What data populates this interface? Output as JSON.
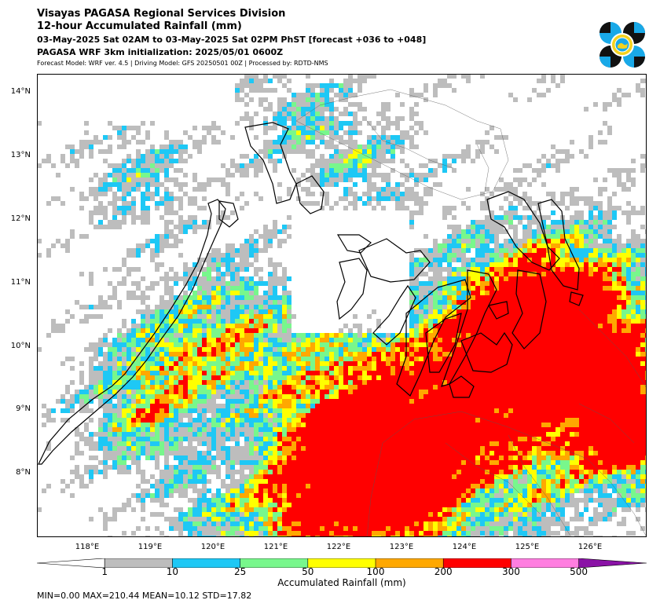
{
  "header": {
    "org": "Visayas PAGASA Regional Services Division",
    "title": "12-hour Accumulated Rainfall (mm)",
    "period": "03-May-2025 Sat 02AM to 03-May-2025 Sat 02PM PhST [forecast +036 to +048]",
    "init": "PAGASA WRF 3km initialization: 2025/05/01 0600Z",
    "meta": "Forecast Model: WRF ver. 4.5 | Driving Model: GFS 20250501 00Z | Processed by: RDTD-NMS"
  },
  "map": {
    "lat_labels": [
      "14°N",
      "13°N",
      "12°N",
      "11°N",
      "10°N",
      "9°N",
      "8°N"
    ],
    "lon_labels": [
      "118°E",
      "119°E",
      "120°E",
      "121°E",
      "122°E",
      "123°E",
      "124°E",
      "125°E",
      "126°E"
    ],
    "lat_values": [
      14,
      13,
      12,
      11,
      10,
      9,
      8
    ],
    "lon_values": [
      118,
      119,
      120,
      121,
      122,
      123,
      124,
      125,
      126
    ],
    "extent": {
      "lon": [
        117.2,
        126.9
      ],
      "lat": [
        7.0,
        14.3
      ]
    }
  },
  "colorbar": {
    "title": "Accumulated Rainfall (mm)",
    "ticks": [
      "1",
      "10",
      "25",
      "50",
      "100",
      "200",
      "300",
      "500"
    ],
    "colors": [
      "#ffffff",
      "#bdbdbd",
      "#1ec8f5",
      "#78f78c",
      "#ffff00",
      "#ffa800",
      "#ff0000",
      "#ff7ee0",
      "#8a12a6"
    ]
  },
  "stats": "MIN=0.00   MAX=210.44   MEAN=10.12   STD=17.82",
  "logo": {
    "icon": "pagasa-logo",
    "colors": [
      "#111111",
      "#19a9e8",
      "#f4d21e"
    ]
  }
}
